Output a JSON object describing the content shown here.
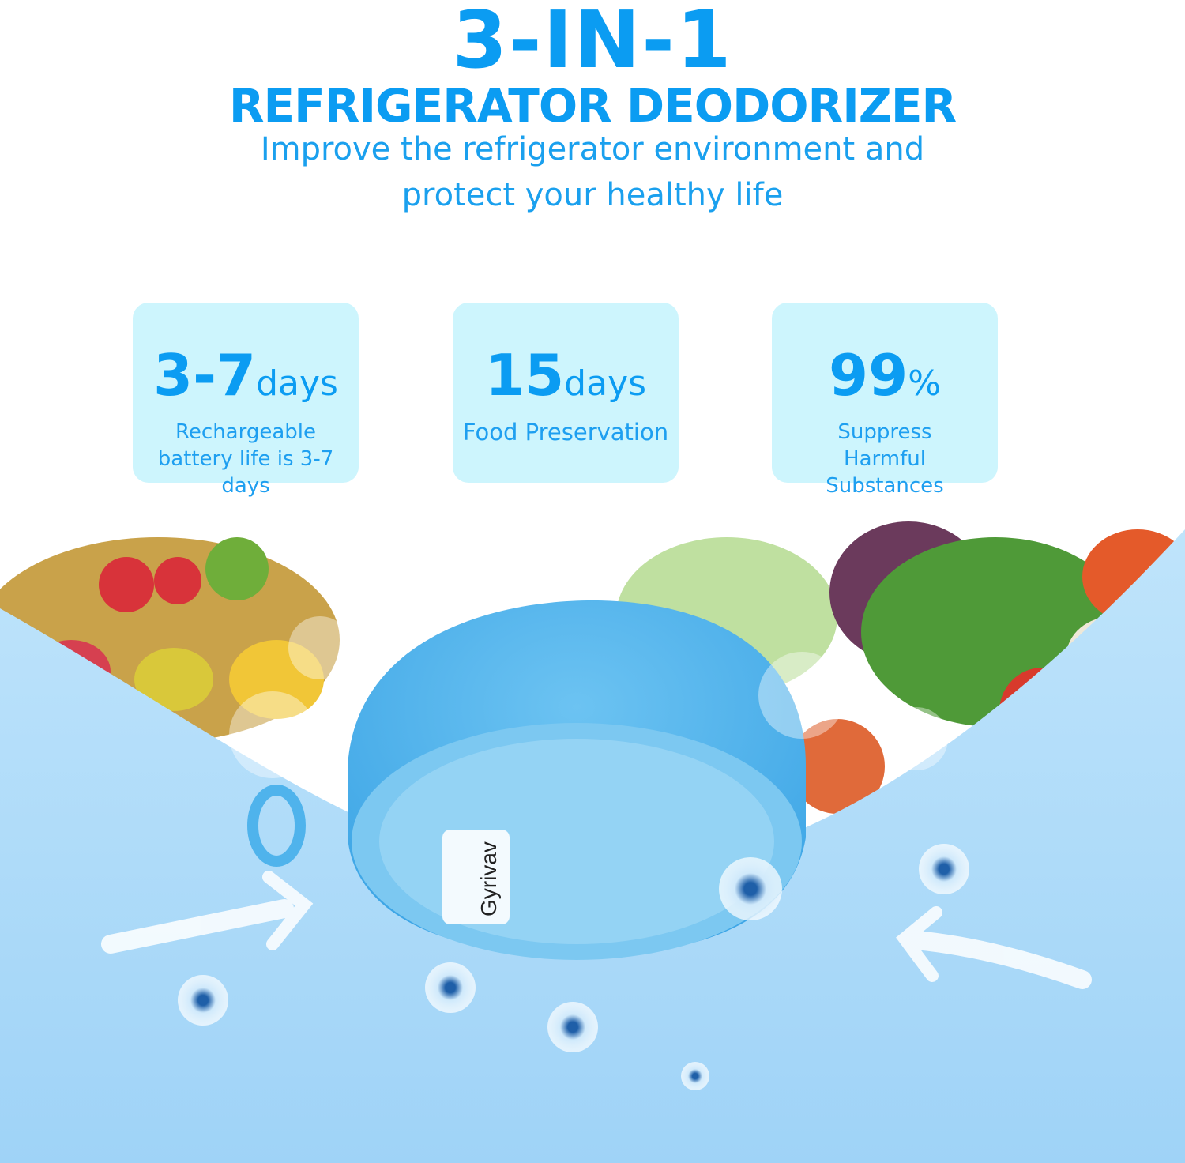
{
  "header": {
    "title": "3-IN-1",
    "subtitle": "REFRIGERATOR DEODORIZER",
    "tagline_line1": "Improve the refrigerator environment and",
    "tagline_line2": "protect your healthy life"
  },
  "features": [
    {
      "value": "3-7",
      "unit": "days",
      "description": "Rechargeable battery life is 3-7 days"
    },
    {
      "value": "15",
      "unit": "days",
      "description": "Food Preservation"
    },
    {
      "value": "99",
      "unit": "%",
      "description": "Suppress Harmful Substances"
    }
  ],
  "product": {
    "brand": "Gyrivav"
  },
  "colors": {
    "accent": "#0b9cf2",
    "card": "#cdf5fd",
    "device": "#4fb3ec",
    "air": "#a9d9f9"
  }
}
